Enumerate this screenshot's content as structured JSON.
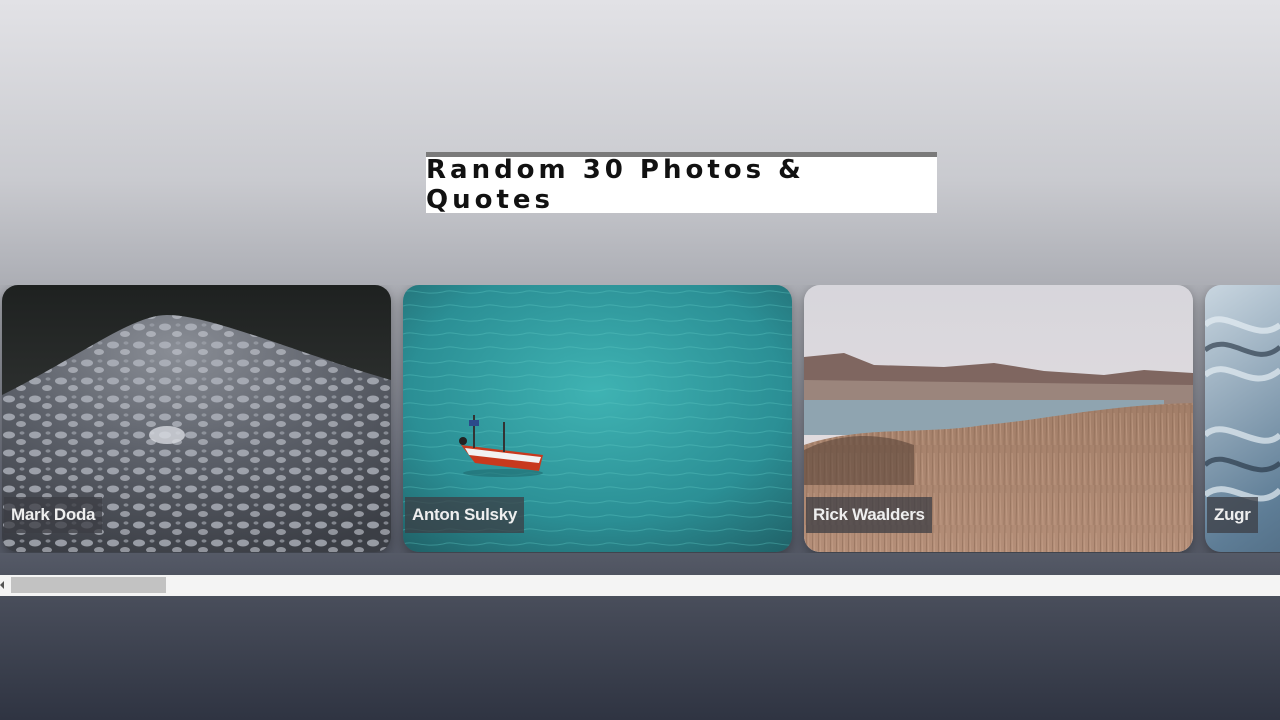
{
  "header": {
    "title": "Random 30 Photos & Quotes"
  },
  "gallery": {
    "cards": [
      {
        "photographer": "Mark Doda",
        "image": "water-droplets-photo"
      },
      {
        "photographer": "Anton Sulsky",
        "image": "boat-on-turquoise-sea-photo"
      },
      {
        "photographer": "Rick Waalders",
        "image": "lake-and-hills-landscape-photo"
      },
      {
        "photographer": "Zugr",
        "image": "abstract-water-texture-photo"
      }
    ]
  },
  "scrollbar": {
    "position_fraction": 0.0
  }
}
